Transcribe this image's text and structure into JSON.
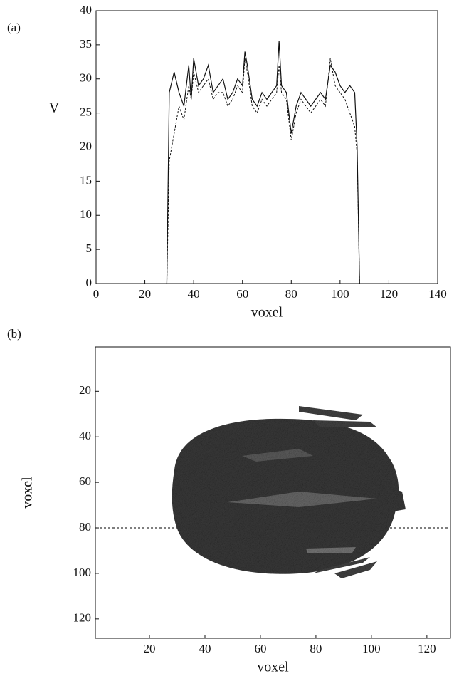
{
  "chart_data": [
    {
      "type": "line",
      "panel_label": "(a)",
      "xlabel": "voxel",
      "ylabel": "V",
      "xlim": [
        0,
        140
      ],
      "xticks": [
        0,
        20,
        40,
        60,
        80,
        100,
        120,
        140
      ],
      "ylim": [
        0,
        40
      ],
      "yticks": [
        0,
        5,
        10,
        15,
        20,
        25,
        30,
        35,
        40
      ],
      "x": [
        29,
        30,
        32,
        34,
        36,
        38,
        39,
        40,
        42,
        44,
        46,
        48,
        50,
        52,
        54,
        56,
        58,
        60,
        61,
        62,
        64,
        66,
        68,
        70,
        72,
        74,
        75,
        76,
        78,
        80,
        82,
        84,
        86,
        88,
        90,
        92,
        94,
        96,
        98,
        100,
        102,
        104,
        106,
        107,
        108
      ],
      "series": [
        {
          "color": "#111111",
          "linestyle": "solid",
          "values": [
            0,
            28,
            31,
            28,
            26,
            32,
            27,
            33,
            29,
            30,
            32,
            28,
            29,
            30,
            27,
            28,
            30,
            29,
            34,
            32,
            27,
            26,
            28,
            27,
            28,
            29,
            35.5,
            29,
            28,
            22,
            26,
            28,
            27,
            26,
            27,
            28,
            27,
            32,
            31,
            29,
            28,
            29,
            28,
            20,
            0
          ]
        },
        {
          "color": "#111111",
          "linestyle": "dashed",
          "values": [
            0,
            18,
            22,
            26,
            24,
            29,
            27,
            31,
            28,
            29,
            30,
            27,
            28,
            28,
            26,
            27,
            29,
            28,
            33,
            31,
            26,
            25,
            27,
            26,
            27,
            28,
            32,
            28,
            27,
            21,
            25,
            27,
            26,
            25,
            26,
            27,
            26,
            33,
            29,
            28,
            27,
            25,
            23,
            19,
            0
          ]
        }
      ]
    },
    {
      "type": "image",
      "panel_label": "(b)",
      "xlabel": "voxel",
      "ylabel": "voxel",
      "xlim": [
        0.5,
        128.5
      ],
      "xticks": [
        20,
        40,
        60,
        80,
        100,
        120
      ],
      "ylim": [
        128.5,
        0.5
      ],
      "yticks": [
        20,
        40,
        60,
        80,
        100,
        120
      ],
      "hline": 80
    }
  ]
}
